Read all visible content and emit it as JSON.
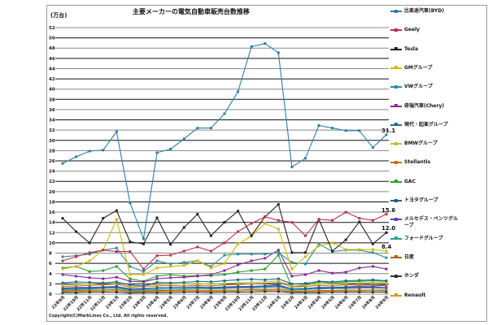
{
  "chart_data": {
    "type": "line",
    "title": "主要メーカーの電気自動車販売台数推移",
    "ylabel": "(万台)",
    "xlabel": "",
    "ylim": [
      0,
      52
    ],
    "yticks": [
      0,
      2,
      4,
      6,
      8,
      10,
      12,
      14,
      16,
      18,
      20,
      22,
      24,
      26,
      28,
      30,
      32,
      34,
      36,
      38,
      40,
      42,
      44,
      46,
      48,
      50,
      52
    ],
    "grid": true,
    "legend_position": "right",
    "categories": [
      "22年9月",
      "22年10月",
      "22年11月",
      "22年12月",
      "23年1月",
      "23年2月",
      "23年3月",
      "23年4月",
      "23年5月",
      "23年6月",
      "23年7月",
      "23年8月",
      "23年9月",
      "23年10月",
      "23年11月",
      "23年12月",
      "24年1月",
      "24年2月",
      "24年3月",
      "24年4月",
      "24年5月",
      "24年6月",
      "24年7月",
      "24年8月",
      "24年9月"
    ],
    "series": [
      {
        "name": "比亜迪汽車(BYD)",
        "color": "#2a7fa8",
        "values": [
          25.5,
          26.8,
          27.9,
          28.1,
          31.7,
          17.8,
          10.8,
          27.6,
          28.3,
          30.3,
          32.4,
          32.4,
          35.2,
          39.5,
          48.3,
          48.9,
          47.1,
          24.8,
          26.5,
          32.9,
          32.4,
          31.9,
          31.9,
          28.6,
          31.1
        ]
      },
      {
        "name": "Geely",
        "color": "#c0304a",
        "values": [
          6.5,
          7.3,
          8.1,
          8.6,
          8.3,
          8.3,
          4.9,
          7.5,
          7.6,
          8.4,
          9.2,
          8.4,
          10.0,
          12.2,
          13.8,
          15.1,
          14.4,
          14.0,
          11.4,
          14.6,
          14.4,
          16.0,
          14.8,
          14.4,
          15.6
        ]
      },
      {
        "name": "Tesla",
        "color": "#222222",
        "values": [
          14.8,
          12.2,
          10.0,
          14.8,
          16.3,
          10.2,
          9.8,
          14.9,
          9.7,
          13.0,
          15.6,
          11.4,
          14.0,
          16.2,
          11.4,
          15.1,
          17.5,
          8.1,
          8.1,
          14.6,
          8.4,
          10.6,
          14.1,
          9.8,
          12.0
        ]
      },
      {
        "name": "GMグループ",
        "color": "#d4b800",
        "values": [
          4.9,
          5.4,
          6.5,
          8.6,
          14.6,
          3.8,
          3.8,
          5.1,
          5.4,
          5.6,
          6.5,
          5.1,
          6.0,
          9.8,
          11.3,
          13.8,
          12.7,
          4.9,
          7.3,
          9.4,
          10.0,
          8.7,
          8.7,
          8.7,
          8.4
        ]
      },
      {
        "name": "VWグループ",
        "color": "#2a8fa0",
        "values": [
          7.3,
          7.5,
          7.8,
          8.6,
          9.0,
          5.4,
          4.4,
          6.5,
          5.9,
          6.2,
          6.5,
          5.4,
          7.6,
          7.8,
          7.8,
          7.8,
          8.1,
          6.2,
          5.9,
          9.8,
          8.3,
          8.6,
          8.6,
          8.1,
          7.1
        ]
      },
      {
        "name": "奇瑞汽車(Chery)",
        "color": "#8a2a9a",
        "values": [
          3.8,
          3.5,
          3.2,
          3.0,
          3.3,
          2.5,
          2.4,
          3.0,
          3.2,
          3.3,
          3.5,
          3.8,
          4.6,
          5.7,
          6.5,
          7.0,
          8.6,
          3.5,
          3.8,
          4.6,
          4.1,
          4.3,
          5.1,
          5.4,
          4.9
        ]
      },
      {
        "name": "現代・起亜グループ",
        "color": "#1f6f8f",
        "values": [
          2.2,
          2.4,
          2.3,
          2.2,
          2.4,
          1.8,
          1.6,
          2.3,
          2.2,
          2.3,
          2.5,
          2.4,
          2.6,
          2.8,
          2.9,
          2.8,
          3.0,
          2.0,
          2.1,
          2.5,
          2.4,
          2.6,
          2.7,
          2.8,
          2.6
        ]
      },
      {
        "name": "BMWグループ",
        "color": "#b8c23a",
        "values": [
          1.8,
          1.9,
          2.0,
          2.2,
          2.3,
          1.5,
          1.7,
          1.9,
          2.0,
          2.0,
          2.1,
          1.9,
          2.1,
          2.2,
          2.3,
          2.4,
          2.6,
          1.6,
          1.8,
          2.0,
          2.1,
          2.1,
          2.2,
          2.3,
          2.2
        ]
      },
      {
        "name": "Stellantis",
        "color": "#c07020",
        "values": [
          1.5,
          1.6,
          1.7,
          1.8,
          2.0,
          1.3,
          1.5,
          1.6,
          1.7,
          1.6,
          1.7,
          1.6,
          1.8,
          1.9,
          2.0,
          2.1,
          2.3,
          1.4,
          1.5,
          1.7,
          1.6,
          1.8,
          1.7,
          1.9,
          1.8
        ]
      },
      {
        "name": "GAC",
        "color": "#2aa02a",
        "values": [
          5.1,
          5.4,
          4.4,
          4.6,
          5.4,
          3.0,
          2.5,
          3.5,
          3.8,
          3.5,
          3.6,
          3.6,
          3.8,
          4.3,
          4.6,
          4.9,
          7.6,
          1.4,
          1.7,
          2.4,
          2.2,
          2.4,
          2.5,
          2.6,
          2.5
        ]
      },
      {
        "name": "トヨタグループ",
        "color": "#1a5fa0",
        "values": [
          1.0,
          1.1,
          1.2,
          1.3,
          1.4,
          0.9,
          1.0,
          1.2,
          1.3,
          1.3,
          1.4,
          1.3,
          1.4,
          1.5,
          1.5,
          1.6,
          1.8,
          1.0,
          1.1,
          1.3,
          1.3,
          1.4,
          1.5,
          1.6,
          1.7
        ]
      },
      {
        "name": "メルセデス・ベンツグループ",
        "color": "#6a3ac0",
        "values": [
          1.2,
          1.3,
          1.3,
          1.4,
          1.5,
          1.0,
          1.1,
          1.2,
          1.3,
          1.3,
          1.3,
          1.2,
          1.3,
          1.4,
          1.4,
          1.5,
          1.6,
          1.0,
          1.1,
          1.2,
          1.2,
          1.3,
          1.3,
          1.4,
          1.3
        ]
      },
      {
        "name": "フォードグループ",
        "color": "#2aa08a",
        "values": [
          0.8,
          0.9,
          1.0,
          1.1,
          1.2,
          0.7,
          0.8,
          0.9,
          1.0,
          1.0,
          1.1,
          1.0,
          1.1,
          1.2,
          1.2,
          1.3,
          1.4,
          0.8,
          0.9,
          1.0,
          1.1,
          1.1,
          1.2,
          1.2,
          1.1
        ]
      },
      {
        "name": "日産",
        "color": "#b06010",
        "values": [
          0.6,
          0.7,
          0.8,
          0.8,
          0.9,
          0.5,
          0.6,
          0.7,
          0.7,
          0.8,
          0.8,
          0.7,
          0.8,
          0.8,
          0.9,
          0.9,
          1.0,
          0.6,
          0.6,
          0.7,
          0.7,
          0.8,
          0.8,
          0.8,
          0.8
        ]
      },
      {
        "name": "ホンダ",
        "color": "#333333",
        "values": [
          0.3,
          0.3,
          0.4,
          0.4,
          0.4,
          0.2,
          0.3,
          0.3,
          0.3,
          0.4,
          0.4,
          0.3,
          0.4,
          0.4,
          0.4,
          0.5,
          0.5,
          0.3,
          0.3,
          0.3,
          0.4,
          0.4,
          0.4,
          0.4,
          0.4
        ]
      },
      {
        "name": "Renault",
        "color": "#d09a20",
        "values": [
          0.5,
          0.5,
          0.6,
          0.6,
          0.7,
          0.4,
          0.5,
          0.5,
          0.6,
          0.6,
          0.6,
          0.5,
          0.6,
          0.6,
          0.7,
          0.7,
          0.8,
          0.4,
          0.5,
          0.5,
          0.6,
          0.6,
          0.6,
          0.7,
          0.6
        ]
      }
    ],
    "annotations": [
      {
        "text": "31.1",
        "series": "比亜迪汽車(BYD)"
      },
      {
        "text": "15.6",
        "series": "Geely"
      },
      {
        "text": "12.0",
        "series": "Tesla"
      },
      {
        "text": "8.4",
        "series": "GMグループ"
      }
    ]
  },
  "copyright": "Copyright(C)MarkLines Co., Ltd. All rights reserved."
}
